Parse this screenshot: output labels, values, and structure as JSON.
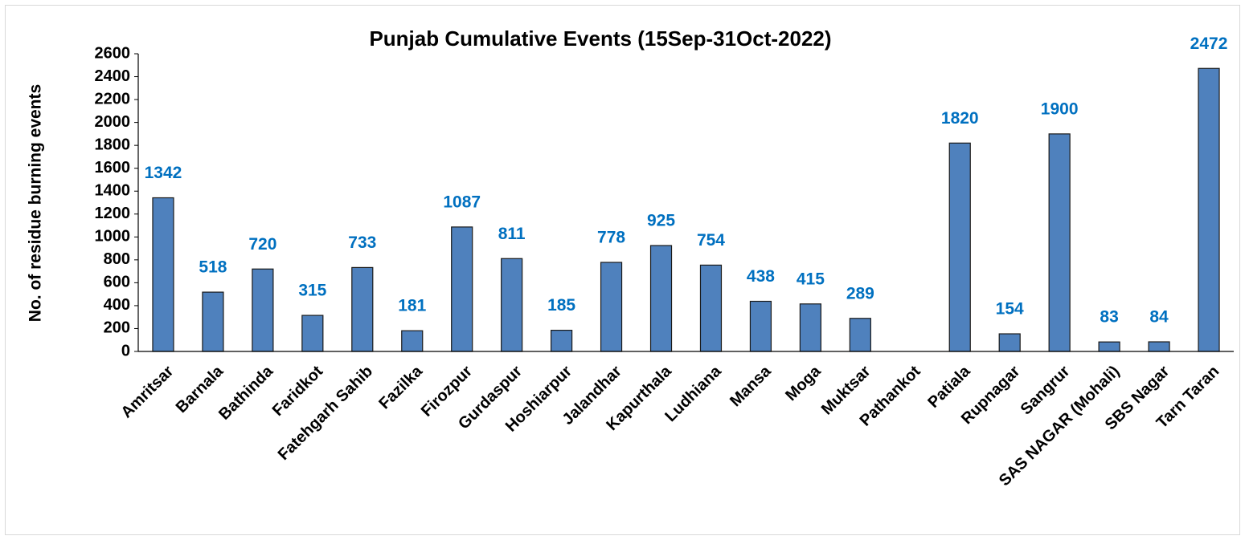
{
  "chart_data": {
    "type": "bar",
    "title": "Punjab Cumulative Events (15Sep-31Oct-2022)",
    "y_label": "No. of residue burning events",
    "categories": [
      "Amritsar",
      "Barnala",
      "Bathinda",
      "Faridkot",
      "Fatehgarh Sahib",
      "Fazilka",
      "Firozpur",
      "Gurdaspur",
      "Hoshiarpur",
      "Jalandhar",
      "Kapurthala",
      "Ludhiana",
      "Mansa",
      "Moga",
      "Muktsar",
      "Pathankot",
      "Patiala",
      "Rupnagar",
      "Sangrur",
      "SAS NAGAR (Mohali)",
      "SBS Nagar",
      "Tarn Taran"
    ],
    "values": [
      1342,
      518,
      720,
      315,
      733,
      181,
      1087,
      811,
      185,
      778,
      925,
      754,
      438,
      415,
      289,
      null,
      1820,
      154,
      1900,
      83,
      84,
      2472
    ],
    "color": "#4f81bd",
    "label_color": "#0070c0",
    "ylim": [
      0,
      2600
    ],
    "yticks": [
      0,
      200,
      400,
      600,
      800,
      1000,
      1200,
      1400,
      1600,
      1800,
      2000,
      2200,
      2400,
      2600
    ]
  }
}
